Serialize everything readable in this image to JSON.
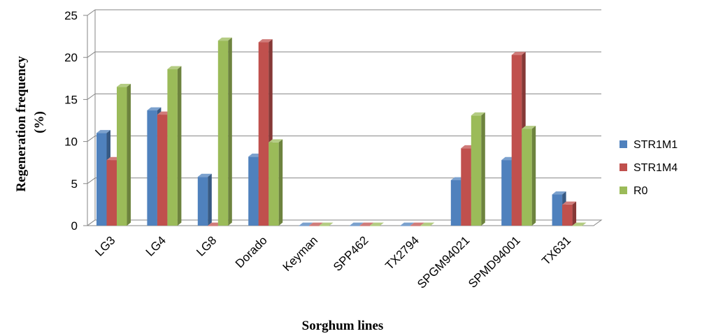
{
  "chart_data": {
    "type": "bar",
    "title": "",
    "xlabel": "Sorghum lines",
    "ylabel_lines": [
      "Regeneration frequency",
      "(%)"
    ],
    "ylim": [
      0,
      25
    ],
    "yticks": [
      0,
      5,
      10,
      15,
      20,
      25
    ],
    "grid": true,
    "legend_position": "right",
    "categories": [
      "LG3",
      "LG4",
      "LG8",
      "Dorado",
      "Keyman",
      "SPP462",
      "TX2794",
      "SPGM94021",
      "SPMD94001",
      "TX631"
    ],
    "series": [
      {
        "name": "STR1M1",
        "color": "#4f81bd",
        "values": [
          11,
          13.7,
          5.8,
          8.2,
          0,
          0,
          0,
          5.4,
          7.8,
          3.7
        ]
      },
      {
        "name": "STR1M4",
        "color": "#c0504d",
        "values": [
          7.8,
          13.2,
          0,
          21.8,
          0,
          0,
          0,
          9.2,
          20.3,
          2.5
        ]
      },
      {
        "name": "R0",
        "color": "#9bbb59",
        "values": [
          16.5,
          18.6,
          22,
          9.9,
          0,
          0,
          0,
          13.1,
          11.5,
          0
        ]
      }
    ]
  }
}
